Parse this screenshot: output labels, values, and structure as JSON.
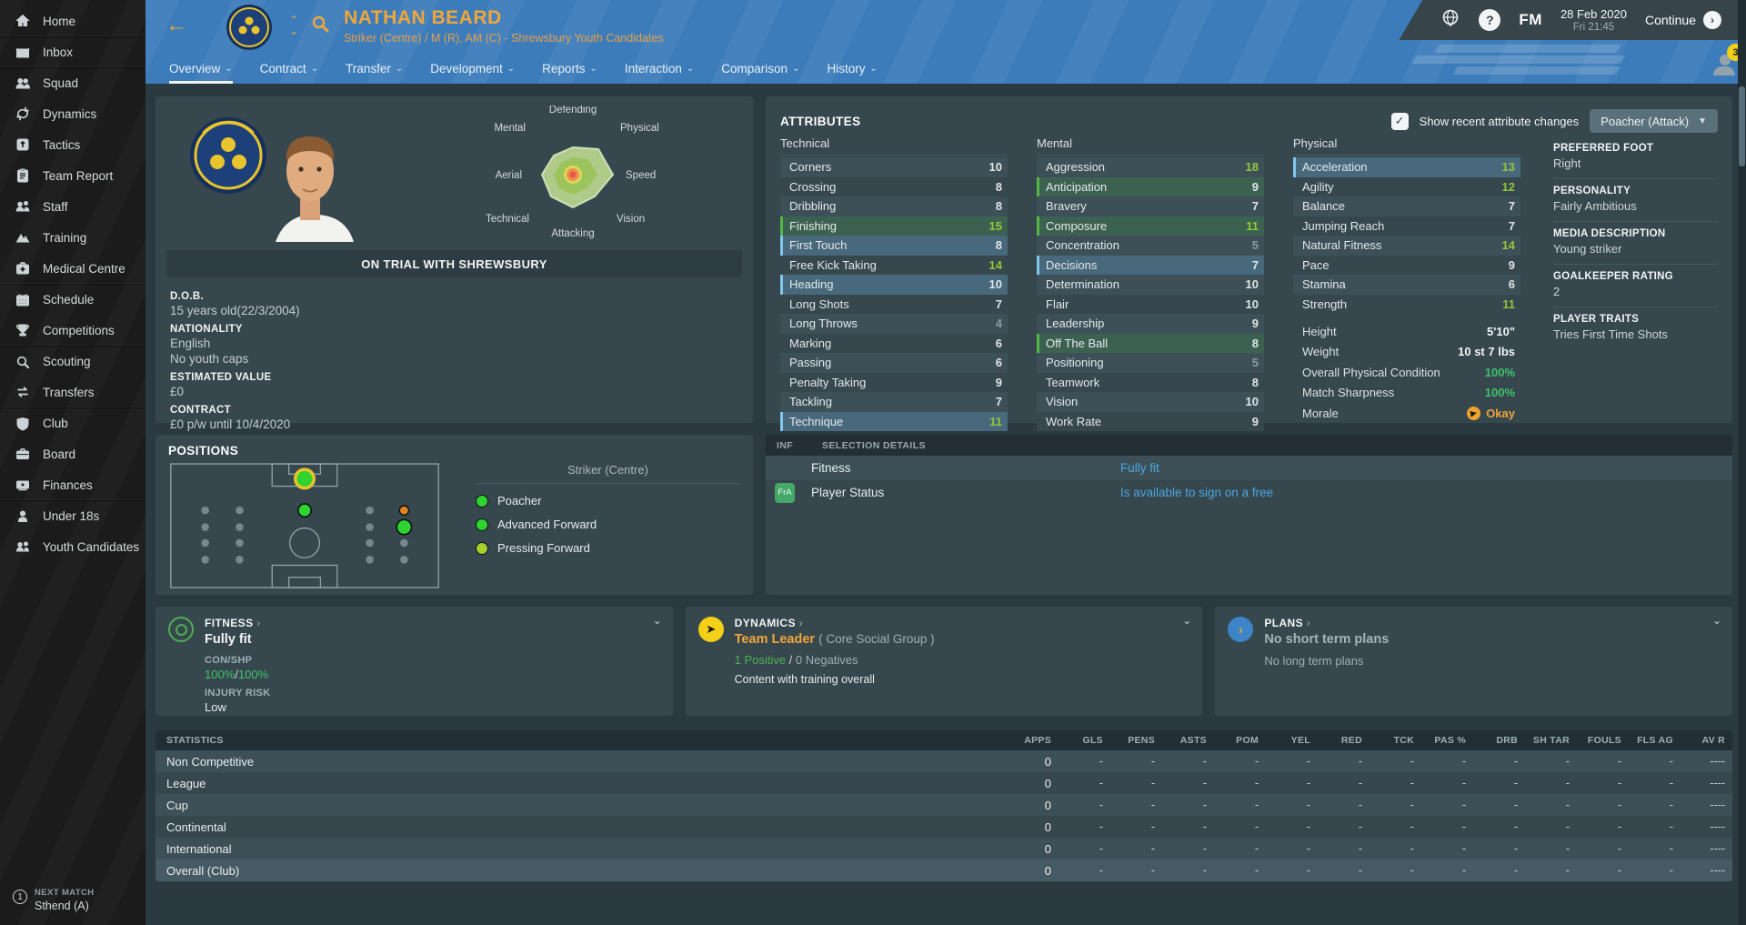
{
  "sidebar": {
    "items": [
      {
        "label": "Home",
        "icon": "home-icon",
        "sep": false
      },
      {
        "label": "Inbox",
        "icon": "inbox-icon",
        "sep": true
      },
      {
        "label": "Squad",
        "icon": "squad-icon",
        "sep": true
      },
      {
        "label": "Dynamics",
        "icon": "dynamics-icon",
        "sep": false
      },
      {
        "label": "Tactics",
        "icon": "tactics-icon",
        "sep": false
      },
      {
        "label": "Team Report",
        "icon": "team-report-icon",
        "sep": false
      },
      {
        "label": "Staff",
        "icon": "staff-icon",
        "sep": false
      },
      {
        "label": "Training",
        "icon": "training-icon",
        "sep": false
      },
      {
        "label": "Medical Centre",
        "icon": "medical-icon",
        "sep": false
      },
      {
        "label": "Schedule",
        "icon": "schedule-icon",
        "sep": true
      },
      {
        "label": "Competitions",
        "icon": "trophy-icon",
        "sep": false
      },
      {
        "label": "Scouting",
        "icon": "scouting-icon",
        "sep": true
      },
      {
        "label": "Transfers",
        "icon": "transfers-icon",
        "sep": false
      },
      {
        "label": "Club",
        "icon": "club-icon",
        "sep": true
      },
      {
        "label": "Board",
        "icon": "board-icon",
        "sep": false
      },
      {
        "label": "Finances",
        "icon": "finances-icon",
        "sep": false
      },
      {
        "label": "Under 18s",
        "icon": "under18s-icon",
        "sep": true
      },
      {
        "label": "Youth Candidates",
        "icon": "youth-icon",
        "sep": false
      }
    ],
    "next_match": {
      "badge": "1",
      "label": "NEXT MATCH",
      "value": "Sthend (A)"
    }
  },
  "header": {
    "player_name": "NATHAN BEARD",
    "player_meta": "Striker (Centre) / M (R), AM (C) - Shrewsbury Youth Candidates",
    "fm_label": "FM",
    "help_label": "?",
    "date": "28 Feb 2020",
    "time": "Fri 21:45",
    "continue_label": "Continue",
    "notification_count": "3"
  },
  "tabs": [
    {
      "label": "Overview",
      "active": true
    },
    {
      "label": "Contract",
      "active": false
    },
    {
      "label": "Transfer",
      "active": false
    },
    {
      "label": "Development",
      "active": false
    },
    {
      "label": "Reports",
      "active": false
    },
    {
      "label": "Interaction",
      "active": false
    },
    {
      "label": "Comparison",
      "active": false
    },
    {
      "label": "History",
      "active": false
    }
  ],
  "profile": {
    "banner": "ON TRIAL WITH SHREWSBURY",
    "dob_label": "D.O.B.",
    "dob": "15 years old(22/3/2004)",
    "nationality_label": "NATIONALITY",
    "nationality": "English",
    "youth_caps": "No youth caps",
    "value_label": "ESTIMATED VALUE",
    "value": "£0",
    "contract_label": "CONTRACT",
    "contract": "£0 p/w until 10/4/2020"
  },
  "radar": {
    "labels": [
      "Defending",
      "Physical",
      "Speed",
      "Vision",
      "Attacking",
      "Technical",
      "Aerial",
      "Mental"
    ]
  },
  "attributes": {
    "title": "ATTRIBUTES",
    "show_changes_label": "Show recent attribute changes",
    "checkbox_checked": "true",
    "role_dropdown": "Poacher (Attack)",
    "groups": [
      {
        "name": "Technical",
        "rows": [
          {
            "label": "Corners",
            "value": 10
          },
          {
            "label": "Crossing",
            "value": 8
          },
          {
            "label": "Dribbling",
            "value": 8
          },
          {
            "label": "Finishing",
            "value": 15,
            "change": "up"
          },
          {
            "label": "First Touch",
            "value": 8,
            "change": "down"
          },
          {
            "label": "Free Kick Taking",
            "value": 14
          },
          {
            "label": "Heading",
            "value": 10,
            "change": "down"
          },
          {
            "label": "Long Shots",
            "value": 7
          },
          {
            "label": "Long Throws",
            "value": 4
          },
          {
            "label": "Marking",
            "value": 6
          },
          {
            "label": "Passing",
            "value": 6
          },
          {
            "label": "Penalty Taking",
            "value": 9
          },
          {
            "label": "Tackling",
            "value": 7
          },
          {
            "label": "Technique",
            "value": 11,
            "change": "down"
          }
        ]
      },
      {
        "name": "Mental",
        "rows": [
          {
            "label": "Aggression",
            "value": 18
          },
          {
            "label": "Anticipation",
            "value": 9,
            "change": "up"
          },
          {
            "label": "Bravery",
            "value": 7
          },
          {
            "label": "Composure",
            "value": 11,
            "change": "up"
          },
          {
            "label": "Concentration",
            "value": 5
          },
          {
            "label": "Decisions",
            "value": 7,
            "change": "down"
          },
          {
            "label": "Determination",
            "value": 10
          },
          {
            "label": "Flair",
            "value": 10
          },
          {
            "label": "Leadership",
            "value": 9
          },
          {
            "label": "Off The Ball",
            "value": 8,
            "change": "up"
          },
          {
            "label": "Positioning",
            "value": 5
          },
          {
            "label": "Teamwork",
            "value": 8
          },
          {
            "label": "Vision",
            "value": 10
          },
          {
            "label": "Work Rate",
            "value": 9
          }
        ]
      },
      {
        "name": "Physical",
        "rows": [
          {
            "label": "Acceleration",
            "value": 13,
            "change": "down"
          },
          {
            "label": "Agility",
            "value": 12
          },
          {
            "label": "Balance",
            "value": 7
          },
          {
            "label": "Jumping Reach",
            "value": 7
          },
          {
            "label": "Natural Fitness",
            "value": 14
          },
          {
            "label": "Pace",
            "value": 9
          },
          {
            "label": "Stamina",
            "value": 6
          },
          {
            "label": "Strength",
            "value": 11
          }
        ]
      }
    ],
    "physical_extra": [
      {
        "label": "Height",
        "value": "5'10\"",
        "style": "plain"
      },
      {
        "label": "Weight",
        "value": "10 st 7 lbs",
        "style": "plain"
      },
      {
        "label": "Overall Physical Condition",
        "value": "100%",
        "style": "green"
      },
      {
        "label": "Match Sharpness",
        "value": "100%",
        "style": "green"
      },
      {
        "label": "Morale",
        "value": "Okay",
        "style": "orange"
      }
    ],
    "info_sections": [
      {
        "label": "PREFERRED FOOT",
        "value": "Right"
      },
      {
        "label": "PERSONALITY",
        "value": "Fairly Ambitious"
      },
      {
        "label": "MEDIA DESCRIPTION",
        "value": "Young striker"
      },
      {
        "label": "GOALKEEPER RATING",
        "value": "2"
      },
      {
        "label": "PLAYER TRAITS",
        "value": "Tries First Time Shots"
      }
    ]
  },
  "positions": {
    "title": "POSITIONS",
    "selected_label": "Striker (Centre)",
    "roles": [
      {
        "label": "Poacher",
        "color": "#2fd32f"
      },
      {
        "label": "Advanced Forward",
        "color": "#2fd32f"
      },
      {
        "label": "Pressing Forward",
        "color": "#a6cf2d"
      }
    ]
  },
  "selection_details": {
    "inf_label": "INF",
    "title": "SELECTION DETAILS",
    "rows": [
      {
        "label": "Fitness",
        "value": "Fully fit",
        "badge": ""
      },
      {
        "label": "Player Status",
        "value": "Is available to sign on a free",
        "badge": "FrA"
      }
    ]
  },
  "panels": {
    "fitness": {
      "title": "FITNESS",
      "arrow": "›",
      "headline": "Fully fit",
      "con_shp_label": "CON/SHP",
      "con": "100%",
      "slash": "/",
      "shp": "100%",
      "injury_label": "INJURY RISK",
      "injury": "Low"
    },
    "dynamics": {
      "title": "DYNAMICS",
      "arrow": "›",
      "headline": "Team Leader",
      "suffix": "( Core Social Group )",
      "positives": "1 Positive",
      "slash": "/",
      "negatives": "0 Negatives",
      "note": "Content with training overall"
    },
    "plans": {
      "title": "PLANS",
      "arrow": "›",
      "headline": "No short term plans",
      "note": "No long term plans"
    }
  },
  "stats": {
    "title": "STATISTICS",
    "columns": [
      "APPS",
      "GLS",
      "PENS",
      "ASTS",
      "POM",
      "YEL",
      "RED",
      "TCK",
      "PAS %",
      "DRB",
      "SH TAR",
      "FOULS",
      "FLS AG",
      "AV R"
    ],
    "rows": [
      {
        "label": "Non Competitive",
        "values": [
          "0",
          "-",
          "-",
          "-",
          "-",
          "-",
          "-",
          "-",
          "-",
          "-",
          "-",
          "-",
          "-",
          "----"
        ]
      },
      {
        "label": "League",
        "values": [
          "0",
          "-",
          "-",
          "-",
          "-",
          "-",
          "-",
          "-",
          "-",
          "-",
          "-",
          "-",
          "-",
          "----"
        ]
      },
      {
        "label": "Cup",
        "values": [
          "0",
          "-",
          "-",
          "-",
          "-",
          "-",
          "-",
          "-",
          "-",
          "-",
          "-",
          "-",
          "-",
          "----"
        ]
      },
      {
        "label": "Continental",
        "values": [
          "0",
          "-",
          "-",
          "-",
          "-",
          "-",
          "-",
          "-",
          "-",
          "-",
          "-",
          "-",
          "-",
          "----"
        ]
      },
      {
        "label": "International",
        "values": [
          "0",
          "-",
          "-",
          "-",
          "-",
          "-",
          "-",
          "-",
          "-",
          "-",
          "-",
          "-",
          "-",
          "----"
        ]
      },
      {
        "label": "Overall (Club)",
        "values": [
          "0",
          "-",
          "-",
          "-",
          "-",
          "-",
          "-",
          "-",
          "-",
          "-",
          "-",
          "-",
          "-",
          "----"
        ]
      }
    ]
  }
}
